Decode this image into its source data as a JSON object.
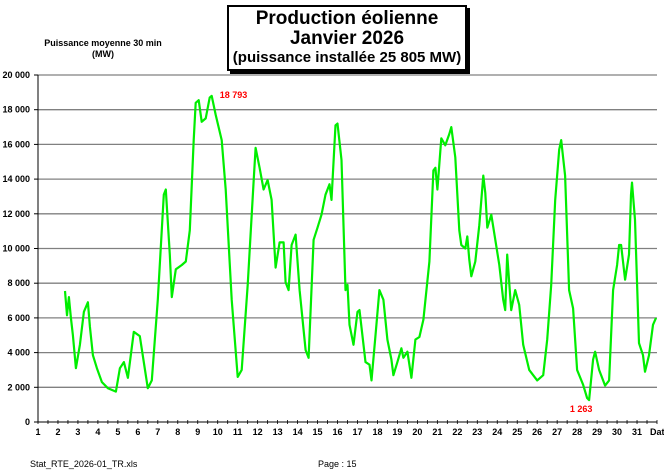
{
  "chart_data": {
    "type": "line",
    "title": [
      "Production éolienne",
      "Janvier 2026",
      "(puissance installée 25 805 MW)"
    ],
    "ylabel": [
      "Puissance moyenne 30 min",
      "(MW)"
    ],
    "xlabel": "Date",
    "xlim": [
      1,
      32
    ],
    "ylim": [
      0,
      20000
    ],
    "yticks": [
      0,
      2000,
      4000,
      6000,
      8000,
      10000,
      12000,
      14000,
      16000,
      18000,
      20000
    ],
    "ytick_labels": [
      "0",
      "2 000",
      "4 000",
      "6 000",
      "8 000",
      "10 000",
      "12 000",
      "14 000",
      "16 000",
      "18 000",
      "20 000"
    ],
    "xticks": [
      1,
      2,
      3,
      4,
      5,
      6,
      7,
      8,
      9,
      10,
      11,
      12,
      13,
      14,
      15,
      16,
      17,
      18,
      19,
      20,
      21,
      22,
      23,
      24,
      25,
      26,
      27,
      28,
      29,
      30,
      31
    ],
    "grid": "horizontal",
    "line_color": "#00ee00",
    "annotation_color": "#ff0000",
    "annotations": [
      {
        "label": "18 793",
        "x": 9.7,
        "y": 18793,
        "position": "right"
      },
      {
        "label": "1 263",
        "x": 28.6,
        "y": 1263,
        "position": "below"
      }
    ],
    "series": [
      {
        "points": [
          [
            2.35,
            7550
          ],
          [
            2.45,
            6150
          ],
          [
            2.55,
            7200
          ],
          [
            2.65,
            6000
          ],
          [
            2.75,
            5000
          ],
          [
            2.9,
            3100
          ],
          [
            3.1,
            4450
          ],
          [
            3.3,
            6350
          ],
          [
            3.5,
            6900
          ],
          [
            3.6,
            5500
          ],
          [
            3.75,
            3850
          ],
          [
            3.95,
            3100
          ],
          [
            4.2,
            2300
          ],
          [
            4.5,
            1950
          ],
          [
            4.9,
            1750
          ],
          [
            5.1,
            3100
          ],
          [
            5.3,
            3450
          ],
          [
            5.5,
            2550
          ],
          [
            5.8,
            5200
          ],
          [
            6.1,
            4950
          ],
          [
            6.5,
            1950
          ],
          [
            6.7,
            2400
          ],
          [
            7.0,
            7050
          ],
          [
            7.3,
            13100
          ],
          [
            7.4,
            13400
          ],
          [
            7.6,
            9650
          ],
          [
            7.7,
            7200
          ],
          [
            7.9,
            8800
          ],
          [
            8.2,
            9050
          ],
          [
            8.4,
            9250
          ],
          [
            8.6,
            11050
          ],
          [
            8.8,
            16250
          ],
          [
            8.9,
            18400
          ],
          [
            9.05,
            18550
          ],
          [
            9.2,
            17300
          ],
          [
            9.4,
            17500
          ],
          [
            9.6,
            18700
          ],
          [
            9.7,
            18793
          ],
          [
            9.9,
            17700
          ],
          [
            10.2,
            16250
          ],
          [
            10.4,
            13400
          ],
          [
            10.7,
            7050
          ],
          [
            11.0,
            2600
          ],
          [
            11.2,
            3000
          ],
          [
            11.5,
            7900
          ],
          [
            11.8,
            13950
          ],
          [
            11.9,
            15800
          ],
          [
            12.1,
            14650
          ],
          [
            12.3,
            13400
          ],
          [
            12.5,
            13950
          ],
          [
            12.7,
            12800
          ],
          [
            12.9,
            8900
          ],
          [
            13.1,
            10350
          ],
          [
            13.3,
            10350
          ],
          [
            13.4,
            8050
          ],
          [
            13.55,
            7600
          ],
          [
            13.7,
            10200
          ],
          [
            13.9,
            10800
          ],
          [
            14.1,
            7600
          ],
          [
            14.4,
            4150
          ],
          [
            14.55,
            3700
          ],
          [
            14.8,
            10500
          ],
          [
            15.0,
            11200
          ],
          [
            15.2,
            11950
          ],
          [
            15.4,
            13100
          ],
          [
            15.6,
            13700
          ],
          [
            15.7,
            12800
          ],
          [
            15.9,
            17100
          ],
          [
            16.0,
            17200
          ],
          [
            16.2,
            15100
          ],
          [
            16.4,
            7600
          ],
          [
            16.5,
            7900
          ],
          [
            16.6,
            5600
          ],
          [
            16.8,
            4450
          ],
          [
            17.0,
            6350
          ],
          [
            17.1,
            6450
          ],
          [
            17.4,
            3450
          ],
          [
            17.6,
            3300
          ],
          [
            17.7,
            2400
          ],
          [
            17.9,
            5000
          ],
          [
            18.1,
            7600
          ],
          [
            18.3,
            7050
          ],
          [
            18.5,
            4750
          ],
          [
            18.7,
            3600
          ],
          [
            18.8,
            2700
          ],
          [
            19.0,
            3450
          ],
          [
            19.2,
            4250
          ],
          [
            19.3,
            3700
          ],
          [
            19.5,
            4050
          ],
          [
            19.7,
            2550
          ],
          [
            19.9,
            4750
          ],
          [
            20.1,
            4900
          ],
          [
            20.3,
            5900
          ],
          [
            20.6,
            9250
          ],
          [
            20.8,
            14500
          ],
          [
            20.9,
            14650
          ],
          [
            21.0,
            13400
          ],
          [
            21.2,
            16350
          ],
          [
            21.4,
            15950
          ],
          [
            21.6,
            16600
          ],
          [
            21.7,
            17000
          ],
          [
            21.9,
            15250
          ],
          [
            22.1,
            11050
          ],
          [
            22.2,
            10200
          ],
          [
            22.4,
            10000
          ],
          [
            22.5,
            10700
          ],
          [
            22.6,
            9350
          ],
          [
            22.7,
            8400
          ],
          [
            22.9,
            9250
          ],
          [
            23.1,
            11350
          ],
          [
            23.3,
            14200
          ],
          [
            23.4,
            13200
          ],
          [
            23.5,
            11200
          ],
          [
            23.7,
            11950
          ],
          [
            23.9,
            10500
          ],
          [
            24.1,
            9050
          ],
          [
            24.3,
            7050
          ],
          [
            24.4,
            6450
          ],
          [
            24.5,
            9650
          ],
          [
            24.7,
            6450
          ],
          [
            24.9,
            7600
          ],
          [
            25.1,
            6750
          ],
          [
            25.3,
            4450
          ],
          [
            25.6,
            3000
          ],
          [
            26.0,
            2400
          ],
          [
            26.3,
            2700
          ],
          [
            26.5,
            4750
          ],
          [
            26.7,
            7900
          ],
          [
            26.9,
            12800
          ],
          [
            27.1,
            15700
          ],
          [
            27.2,
            16250
          ],
          [
            27.4,
            14200
          ],
          [
            27.6,
            7600
          ],
          [
            27.8,
            6550
          ],
          [
            28.0,
            3000
          ],
          [
            28.3,
            2150
          ],
          [
            28.5,
            1383
          ],
          [
            28.6,
            1263
          ],
          [
            28.8,
            3600
          ],
          [
            28.9,
            4050
          ],
          [
            29.1,
            3000
          ],
          [
            29.4,
            2100
          ],
          [
            29.6,
            2400
          ],
          [
            29.8,
            7600
          ],
          [
            30.0,
            9050
          ],
          [
            30.1,
            10200
          ],
          [
            30.2,
            10200
          ],
          [
            30.4,
            8200
          ],
          [
            30.6,
            9650
          ],
          [
            30.7,
            13100
          ],
          [
            30.75,
            13800
          ],
          [
            30.9,
            11650
          ],
          [
            31.1,
            4550
          ],
          [
            31.3,
            3850
          ],
          [
            31.4,
            2900
          ],
          [
            31.6,
            3850
          ],
          [
            31.8,
            5600
          ],
          [
            31.95,
            6000
          ]
        ]
      }
    ]
  },
  "footer": {
    "file_name": "Stat_RTE_2026-01_TR.xls",
    "page": "Page : 15"
  }
}
